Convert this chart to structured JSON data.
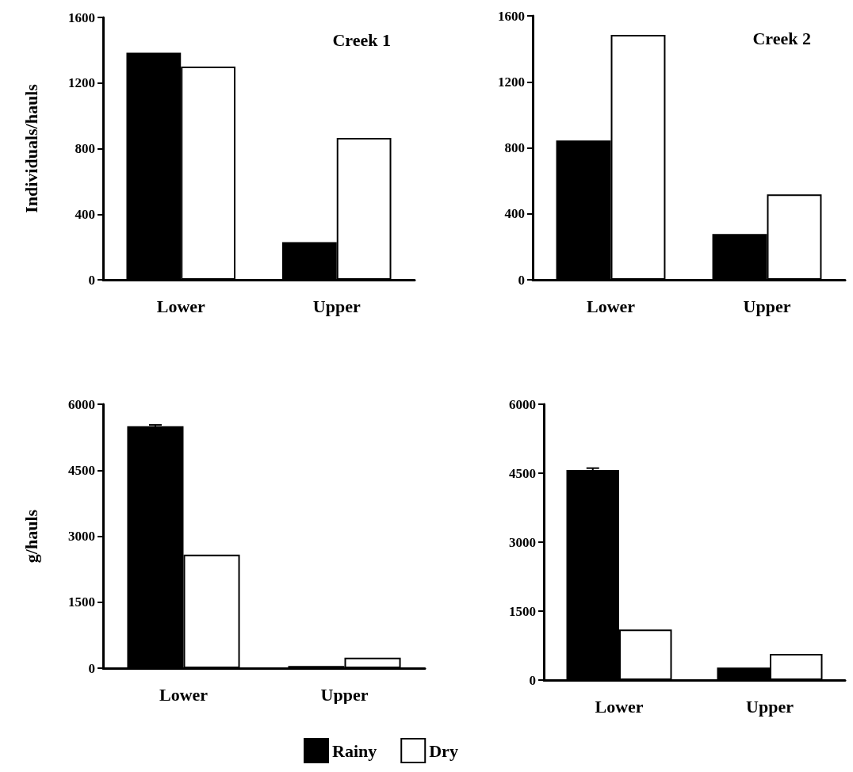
{
  "chart_data": [
    {
      "type": "bar",
      "title": "Creek 1",
      "ylabel": "Individuals/hauls",
      "categories": [
        "Lower",
        "Upper"
      ],
      "ylim": [
        0,
        1600
      ],
      "yticks": [
        0,
        400,
        800,
        1200,
        1600
      ],
      "series": [
        {
          "color": "#000000",
          "values": [
            1385,
            230
          ]
        },
        {
          "color": "#ffffff",
          "values": [
            1300,
            865
          ]
        }
      ]
    },
    {
      "type": "bar",
      "title": "Creek 2",
      "categories": [
        "Lower",
        "Upper"
      ],
      "ylim": [
        0,
        1600
      ],
      "yticks": [
        0,
        400,
        800,
        1200,
        1600
      ],
      "series": [
        {
          "color": "#000000",
          "values": [
            845,
            278
          ]
        },
        {
          "color": "#ffffff",
          "values": [
            1485,
            518
          ]
        }
      ]
    },
    {
      "type": "bar",
      "ylabel": "g/hauls",
      "categories": [
        "Lower",
        "Upper"
      ],
      "ylim": [
        0,
        6000
      ],
      "yticks": [
        0,
        1500,
        3000,
        4500,
        6000
      ],
      "series": [
        {
          "color": "#000000",
          "values": [
            5500,
            50
          ],
          "errors": [
            30,
            null
          ]
        },
        {
          "color": "#ffffff",
          "values": [
            2580,
            240
          ]
        }
      ]
    },
    {
      "type": "bar",
      "categories": [
        "Lower",
        "Upper"
      ],
      "ylim": [
        0,
        6000
      ],
      "yticks": [
        0,
        1500,
        3000,
        4500,
        6000
      ],
      "legend": "bottom",
      "series": [
        {
          "name": "Rainy",
          "color": "#000000",
          "values": [
            4570,
            270
          ],
          "errors": [
            40,
            null
          ]
        },
        {
          "name": "Dry",
          "color": "#ffffff",
          "values": [
            1100,
            570
          ]
        }
      ]
    }
  ]
}
